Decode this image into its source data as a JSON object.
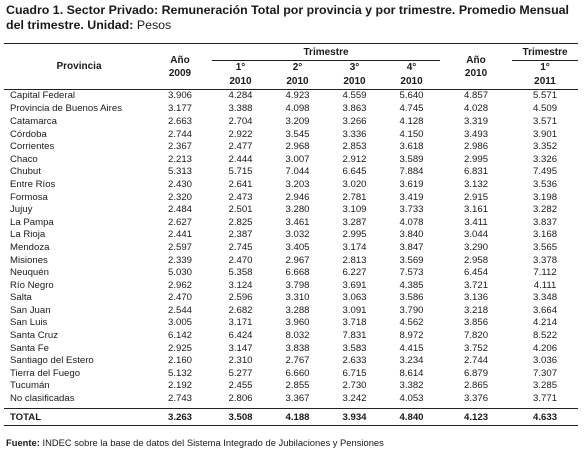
{
  "title": {
    "bold": "Cuadro 1. Sector Privado: Remuneración Total por provincia y por trimestre. Promedio Mensual del trimestre. Unidad:",
    "unit": " Pesos"
  },
  "header": {
    "provincia": "Provincia",
    "anio2009": [
      "Año",
      "2009"
    ],
    "trimestre_group": "Trimestre",
    "quarters": [
      [
        "1°",
        "2010"
      ],
      [
        "2°",
        "2010"
      ],
      [
        "3°",
        "2010"
      ],
      [
        "4°",
        "2010"
      ]
    ],
    "anio2010": [
      "Año",
      "2010"
    ],
    "trimestre_2011": "Trimestre",
    "q1_2011": [
      "1°",
      "2011"
    ]
  },
  "rows": [
    {
      "name": "Capital Federal",
      "v": [
        "3.906",
        "4.284",
        "4.923",
        "4.559",
        "5.640",
        "4.857",
        "5.571"
      ]
    },
    {
      "name": "Provincia de Buenos Aires",
      "v": [
        "3.177",
        "3.388",
        "4.098",
        "3.863",
        "4.745",
        "4.028",
        "4.509"
      ]
    },
    {
      "name": "Catamarca",
      "v": [
        "2.663",
        "2.704",
        "3.209",
        "3.266",
        "4.128",
        "3.319",
        "3.571"
      ]
    },
    {
      "name": "Córdoba",
      "v": [
        "2.744",
        "2.922",
        "3.545",
        "3.336",
        "4.150",
        "3.493",
        "3.901"
      ]
    },
    {
      "name": "Corrientes",
      "v": [
        "2.367",
        "2.477",
        "2.968",
        "2.853",
        "3.618",
        "2.986",
        "3.352"
      ]
    },
    {
      "name": "Chaco",
      "v": [
        "2.213",
        "2.444",
        "3.007",
        "2.912",
        "3.589",
        "2.995",
        "3.326"
      ]
    },
    {
      "name": "Chubut",
      "v": [
        "5.313",
        "5.715",
        "7.044",
        "6.645",
        "7.884",
        "6.831",
        "7.495"
      ]
    },
    {
      "name": "Entre Ríos",
      "v": [
        "2.430",
        "2.641",
        "3.203",
        "3.020",
        "3.619",
        "3.132",
        "3.536"
      ]
    },
    {
      "name": "Formosa",
      "v": [
        "2.320",
        "2.473",
        "2.946",
        "2.781",
        "3.419",
        "2.915",
        "3.198"
      ]
    },
    {
      "name": "Jujuy",
      "v": [
        "2.484",
        "2.501",
        "3.280",
        "3.109",
        "3.733",
        "3.161",
        "3.282"
      ]
    },
    {
      "name": "La Pampa",
      "v": [
        "2.627",
        "2.825",
        "3.461",
        "3.287",
        "4.078",
        "3.411",
        "3.837"
      ]
    },
    {
      "name": "La Rioja",
      "v": [
        "2.441",
        "2.387",
        "3.032",
        "2.995",
        "3.840",
        "3.044",
        "3.168"
      ]
    },
    {
      "name": "Mendoza",
      "v": [
        "2.597",
        "2.745",
        "3.405",
        "3.174",
        "3.847",
        "3.290",
        "3.565"
      ]
    },
    {
      "name": "Misiones",
      "v": [
        "2.339",
        "2.470",
        "2.967",
        "2.813",
        "3.569",
        "2.958",
        "3.378"
      ]
    },
    {
      "name": "Neuquén",
      "v": [
        "5.030",
        "5.358",
        "6.668",
        "6.227",
        "7.573",
        "6.454",
        "7.112"
      ]
    },
    {
      "name": "Río Negro",
      "v": [
        "2.962",
        "3.124",
        "3.798",
        "3.691",
        "4.385",
        "3.721",
        "4.111"
      ]
    },
    {
      "name": "Salta",
      "v": [
        "2.470",
        "2.596",
        "3.310",
        "3.063",
        "3.586",
        "3.136",
        "3.348"
      ]
    },
    {
      "name": "San Juan",
      "v": [
        "2.544",
        "2.682",
        "3.288",
        "3.091",
        "3.790",
        "3.218",
        "3.664"
      ]
    },
    {
      "name": "San Luis",
      "v": [
        "3.005",
        "3.171",
        "3.960",
        "3.718",
        "4.562",
        "3.856",
        "4.214"
      ]
    },
    {
      "name": "Santa Cruz",
      "v": [
        "6.142",
        "6.424",
        "8.032",
        "7.831",
        "8.972",
        "7.820",
        "8.522"
      ]
    },
    {
      "name": "Santa Fe",
      "v": [
        "2.925",
        "3.147",
        "3.838",
        "3.583",
        "4.415",
        "3.752",
        "4.206"
      ]
    },
    {
      "name": "Santiago del Estero",
      "v": [
        "2.160",
        "2.310",
        "2.767",
        "2.633",
        "3.234",
        "2.744",
        "3.036"
      ]
    },
    {
      "name": "Tierra del Fuego",
      "v": [
        "5.132",
        "5.277",
        "6.660",
        "6.715",
        "8.614",
        "6.879",
        "7.307"
      ]
    },
    {
      "name": "Tucumán",
      "v": [
        "2.192",
        "2.455",
        "2.855",
        "2.730",
        "3.382",
        "2.865",
        "3.285"
      ]
    },
    {
      "name": "No clasificadas",
      "v": [
        "2.743",
        "2.806",
        "3.367",
        "3.242",
        "4.053",
        "3.376",
        "3.771"
      ]
    }
  ],
  "total": {
    "name": "TOTAL",
    "v": [
      "3.263",
      "3.508",
      "4.188",
      "3.934",
      "4.840",
      "4.123",
      "4.633"
    ]
  },
  "source": {
    "label": "Fuente:",
    "text": " INDEC sobre la base de datos del Sistema Integrado de Jubilaciones  y Pensiones"
  }
}
